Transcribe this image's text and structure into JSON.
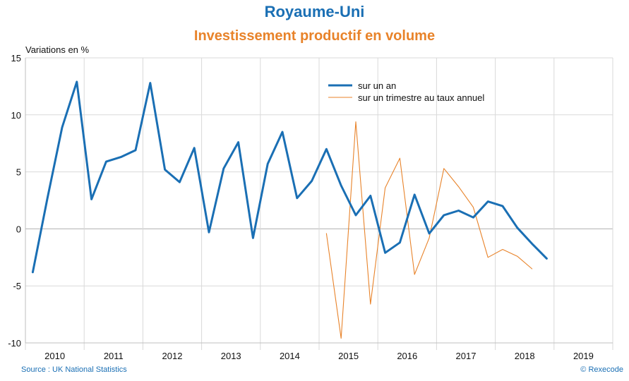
{
  "header": {
    "title": "Royaume-Uni",
    "subtitle": "Investissement productif en volume"
  },
  "footer": {
    "source": "Source : UK National Statistics",
    "credit": "© Rexecode"
  },
  "colors": {
    "title": "#1a6fb4",
    "subtitle": "#e8832a",
    "series_annual": "#1a6fb4",
    "series_quarterly": "#e8832a",
    "grid": "#d9d9d9"
  },
  "chart_data": {
    "type": "line",
    "ylabel": "Variations en %",
    "xlabel": "",
    "ylim": [
      -10,
      15
    ],
    "yticks": [
      15,
      10,
      5,
      0,
      -5,
      -10
    ],
    "x_categories": [
      "2010",
      "2011",
      "2012",
      "2013",
      "2014",
      "2015",
      "2016",
      "2017",
      "2018",
      "2019"
    ],
    "grid": true,
    "legend_position": "top-right",
    "series": [
      {
        "name": "sur un an",
        "color": "#1a6fb4",
        "x": [
          "2010-Q1",
          "2010-Q2",
          "2010-Q3",
          "2010-Q4",
          "2011-Q1",
          "2011-Q2",
          "2011-Q3",
          "2011-Q4",
          "2012-Q1",
          "2012-Q2",
          "2012-Q3",
          "2012-Q4",
          "2013-Q1",
          "2013-Q2",
          "2013-Q3",
          "2013-Q4",
          "2014-Q1",
          "2014-Q2",
          "2014-Q3",
          "2014-Q4",
          "2015-Q1",
          "2015-Q2",
          "2015-Q3",
          "2015-Q4",
          "2016-Q1",
          "2016-Q2",
          "2016-Q3",
          "2016-Q4",
          "2017-Q1",
          "2017-Q2",
          "2017-Q3",
          "2017-Q4",
          "2018-Q1",
          "2018-Q2",
          "2018-Q3",
          "2018-Q4"
        ],
        "values": [
          -3.8,
          2.7,
          8.9,
          12.9,
          2.6,
          5.9,
          6.3,
          6.9,
          12.8,
          5.2,
          4.1,
          7.1,
          -0.3,
          5.3,
          7.6,
          -0.8,
          5.7,
          8.5,
          2.7,
          4.2,
          7.0,
          3.8,
          1.2,
          2.9,
          -2.1,
          -1.2,
          3.0,
          -0.4,
          1.2,
          1.6,
          1.0,
          2.4,
          2.0,
          0.1,
          -1.3,
          -2.6
        ]
      },
      {
        "name": "sur un trimestre au taux annuel",
        "color": "#e8832a",
        "x": [
          "2015-Q1",
          "2015-Q2",
          "2015-Q3",
          "2015-Q4",
          "2016-Q1",
          "2016-Q2",
          "2016-Q3",
          "2016-Q4",
          "2017-Q1",
          "2017-Q2",
          "2017-Q3",
          "2017-Q4",
          "2018-Q1",
          "2018-Q2",
          "2018-Q3",
          "2018-Q4"
        ],
        "values": [
          -0.4,
          -9.6,
          9.4,
          -6.6,
          3.6,
          6.2,
          -4.0,
          -0.8,
          5.3,
          3.7,
          1.9,
          -2.5,
          -1.8,
          -2.4,
          -3.5,
          null
        ]
      }
    ]
  }
}
